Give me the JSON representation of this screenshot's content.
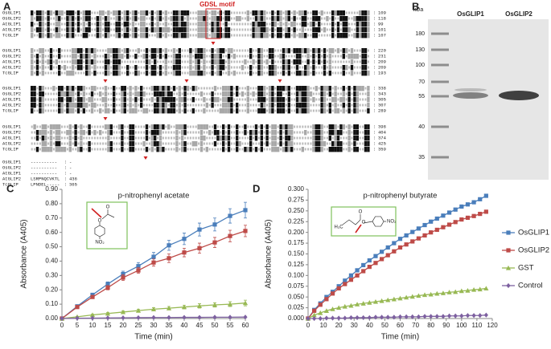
{
  "alignment": {
    "panel": "A",
    "motif_label": "GDSL motif",
    "blocks": [
      {
        "rows": [
          {
            "name": "OsGLIP1",
            "end": "109"
          },
          {
            "name": "OsGLIP2",
            "end": "118"
          },
          {
            "name": "AtGLIP1",
            "end": "99"
          },
          {
            "name": "AtGLIP2",
            "end": "101"
          },
          {
            "name": "TcGLIP",
            "end": "107"
          }
        ]
      },
      {
        "rows": [
          {
            "name": "OsGLIP1",
            "end": "220"
          },
          {
            "name": "OsGLIP2",
            "end": "231"
          },
          {
            "name": "AtGLIP1",
            "end": "209"
          },
          {
            "name": "AtGLIP2",
            "end": "209"
          },
          {
            "name": "TcGLIP",
            "end": "193"
          }
        ]
      },
      {
        "rows": [
          {
            "name": "OsGLIP1",
            "end": "338"
          },
          {
            "name": "OsGLIP2",
            "end": "343"
          },
          {
            "name": "AtGLIP1",
            "end": "305"
          },
          {
            "name": "AtGLIP2",
            "end": "307"
          },
          {
            "name": "TcGLIP",
            "end": "289"
          }
        ]
      },
      {
        "rows": [
          {
            "name": "OsGLIP1",
            "end": "398"
          },
          {
            "name": "OsGLIP2",
            "end": "404"
          },
          {
            "name": "AtGLIP1",
            "end": "374"
          },
          {
            "name": "AtGLIP2",
            "end": "425"
          },
          {
            "name": "TcGLIP",
            "end": "359"
          }
        ]
      },
      {
        "rows": [
          {
            "name": "OsGLIP1",
            "seq": "----------",
            "end": "-"
          },
          {
            "name": "OsGLIP2",
            "seq": "----------",
            "end": "-"
          },
          {
            "name": "AtGLIP1",
            "seq": "----------",
            "end": "-"
          },
          {
            "name": "AtGLIP2",
            "seq": "LSRPNQCVKTL",
            "end": "436"
          },
          {
            "name": "TcGLIP",
            "seq": "LPNDEL-----",
            "end": "365"
          }
        ]
      }
    ]
  },
  "gel": {
    "panel": "B",
    "unit": "kDa",
    "lanes": [
      "OsGLIP1",
      "OsGLIP2"
    ],
    "markers": [
      "180",
      "130",
      "100",
      "70",
      "55",
      "40",
      "35"
    ]
  },
  "chart_data": [
    {
      "type": "line",
      "panel": "C",
      "title": "p-nitrophenyl acetate",
      "x_label": "Time (min)",
      "y_label": "Absorbance (A405)",
      "structure_labels": [
        "O",
        "O",
        "NO₂"
      ],
      "x": [
        0,
        5,
        10,
        15,
        20,
        25,
        30,
        35,
        40,
        45,
        50,
        55,
        60
      ],
      "xlim": [
        0,
        60
      ],
      "xticks": [
        0,
        5,
        10,
        15,
        20,
        25,
        30,
        35,
        40,
        45,
        50,
        55,
        60
      ],
      "ylim": [
        0,
        0.9
      ],
      "yticks": [
        {
          "value": 0,
          "label": "0.00"
        },
        {
          "value": 0.1,
          "label": "0.10"
        },
        {
          "value": 0.2,
          "label": "0.20"
        },
        {
          "value": 0.3,
          "label": "0.30"
        },
        {
          "value": 0.4,
          "label": "0.40"
        },
        {
          "value": 0.5,
          "label": "0.50"
        },
        {
          "value": 0.6,
          "label": "0.60"
        },
        {
          "value": 0.7,
          "label": "0.70"
        },
        {
          "value": 0.8,
          "label": "0.80"
        },
        {
          "value": 0.9,
          "label": "0.90"
        }
      ],
      "grid": false,
      "series": [
        {
          "color": "#4a7ebb",
          "marker": "square",
          "values": [
            0,
            0.085,
            0.165,
            0.24,
            0.31,
            0.365,
            0.43,
            0.51,
            0.555,
            0.62,
            0.655,
            0.715,
            0.755
          ],
          "errors": [
            0,
            0.005,
            0.01,
            0.015,
            0.02,
            0.025,
            0.03,
            0.035,
            0.04,
            0.045,
            0.045,
            0.05,
            0.055
          ]
        },
        {
          "color": "#be4b48",
          "marker": "square",
          "values": [
            0,
            0.08,
            0.15,
            0.215,
            0.285,
            0.335,
            0.39,
            0.42,
            0.46,
            0.49,
            0.53,
            0.575,
            0.61
          ],
          "errors": [
            0,
            0.005,
            0.01,
            0.015,
            0.02,
            0.02,
            0.025,
            0.03,
            0.03,
            0.035,
            0.035,
            0.04,
            0.04
          ]
        },
        {
          "color": "#98b954",
          "marker": "triangle",
          "values": [
            0,
            0.012,
            0.025,
            0.035,
            0.045,
            0.055,
            0.065,
            0.072,
            0.08,
            0.088,
            0.095,
            0.1,
            0.108
          ],
          "errors": [
            0,
            0.003,
            0.005,
            0.007,
            0.008,
            0.01,
            0.01,
            0.012,
            0.013,
            0.015,
            0.015,
            0.017,
            0.02
          ]
        },
        {
          "color": "#7d60a0",
          "marker": "diamond",
          "values": [
            0,
            0.002,
            0.003,
            0.004,
            0.005,
            0.006,
            0.007,
            0.007,
            0.008,
            0.008,
            0.009,
            0.009,
            0.01
          ],
          "errors": [
            0,
            0.002,
            0.002,
            0.002,
            0.002,
            0.002,
            0.002,
            0.002,
            0.002,
            0.002,
            0.002,
            0.002,
            0.002
          ]
        }
      ]
    },
    {
      "type": "line",
      "panel": "D",
      "title": "p-nitrophenyl butyrate",
      "x_label": "Time (min)",
      "y_label": "Absorbance (A405)",
      "structure_labels": [
        "H₃C",
        "O",
        "O",
        "NO₂"
      ],
      "legend": "right",
      "x": [
        0,
        4,
        8,
        12,
        16,
        20,
        24,
        28,
        32,
        36,
        40,
        44,
        48,
        52,
        56,
        60,
        64,
        68,
        72,
        76,
        80,
        84,
        88,
        92,
        96,
        100,
        104,
        108,
        112,
        116
      ],
      "xlim": [
        0,
        120
      ],
      "xticks": [
        0,
        10,
        20,
        30,
        40,
        50,
        60,
        70,
        80,
        90,
        100,
        110,
        120
      ],
      "ylim": [
        0,
        0.3
      ],
      "yticks": [
        {
          "value": 0,
          "label": "0.000"
        },
        0.025,
        {
          "value": 0.05,
          "label": "0.050"
        },
        0.075,
        {
          "value": 0.1,
          "label": "0.100"
        },
        0.125,
        {
          "value": 0.15,
          "label": "0.150"
        },
        0.175,
        {
          "value": 0.2,
          "label": "0.200"
        },
        0.225,
        {
          "value": 0.25,
          "label": "0.250"
        },
        0.275,
        {
          "value": 0.3,
          "label": "0.300"
        }
      ],
      "grid": false,
      "series": [
        {
          "name": "OsGLIP1",
          "color": "#4a7ebb",
          "marker": "square",
          "values": [
            0,
            0.02,
            0.035,
            0.05,
            0.062,
            0.075,
            0.088,
            0.1,
            0.112,
            0.124,
            0.135,
            0.145,
            0.155,
            0.165,
            0.175,
            0.185,
            0.193,
            0.201,
            0.209,
            0.217,
            0.225,
            0.232,
            0.239,
            0.246,
            0.253,
            0.26,
            0.265,
            0.27,
            0.277,
            0.285
          ]
        },
        {
          "name": "OsGLIP2",
          "color": "#be4b48",
          "marker": "square",
          "values": [
            0,
            0.018,
            0.032,
            0.045,
            0.058,
            0.07,
            0.08,
            0.09,
            0.1,
            0.11,
            0.12,
            0.129,
            0.138,
            0.147,
            0.156,
            0.165,
            0.172,
            0.179,
            0.186,
            0.193,
            0.2,
            0.206,
            0.212,
            0.218,
            0.224,
            0.23,
            0.234,
            0.238,
            0.243,
            0.248
          ]
        },
        {
          "name": "GST",
          "color": "#98b954",
          "marker": "triangle",
          "values": [
            0,
            0.008,
            0.013,
            0.018,
            0.022,
            0.025,
            0.028,
            0.03,
            0.033,
            0.035,
            0.037,
            0.039,
            0.041,
            0.043,
            0.045,
            0.047,
            0.049,
            0.051,
            0.053,
            0.055,
            0.056,
            0.058,
            0.059,
            0.061,
            0.062,
            0.064,
            0.065,
            0.067,
            0.068,
            0.07
          ]
        },
        {
          "name": "Control",
          "color": "#7d60a0",
          "marker": "diamond",
          "values": [
            0,
            0,
            0,
            0.001,
            0.001,
            0.001,
            0.001,
            0.002,
            0.002,
            0.002,
            0.002,
            0.003,
            0.003,
            0.003,
            0.003,
            0.004,
            0.004,
            0.004,
            0.004,
            0.005,
            0.005,
            0.005,
            0.005,
            0.006,
            0.006,
            0.006,
            0.007,
            0.007,
            0.007,
            0.008
          ]
        }
      ]
    }
  ]
}
